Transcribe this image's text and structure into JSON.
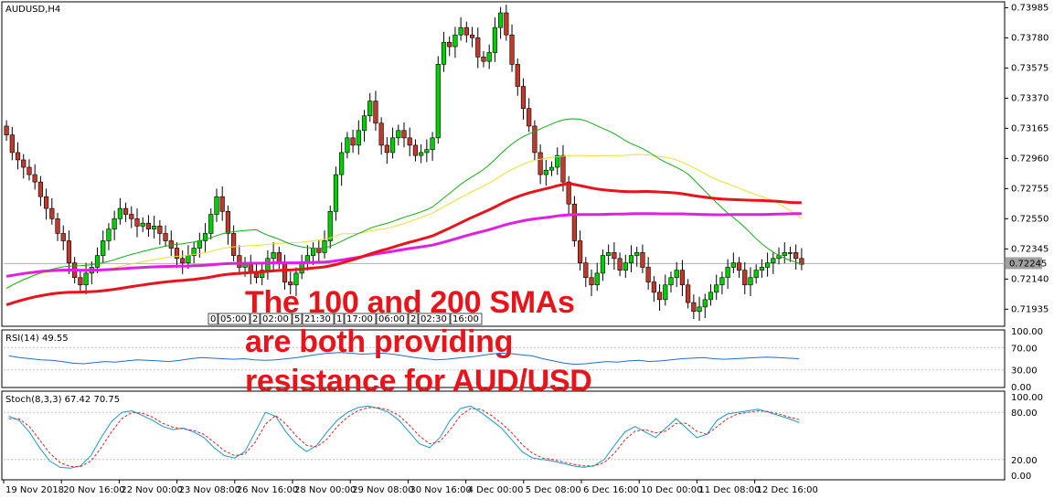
{
  "chart_data": [
    {
      "type": "candlestick",
      "title": "AUDUSD,H4",
      "price_ticks": [
        "0.73985",
        "0.73780",
        "0.73575",
        "0.73370",
        "0.73165",
        "0.72960",
        "0.72755",
        "0.72550",
        "0.72345",
        "0.72140",
        "0.71935"
      ],
      "current_price": "0.72245",
      "ylim": [
        0.7185,
        0.74
      ],
      "overlays": [
        "MA 100 (red)",
        "MA 200 (magenta)",
        "MA (green)",
        "MA (yellow)"
      ],
      "x_ticks": [
        "19 Nov 2018",
        "20 Nov 16:00",
        "22 Nov 00:00",
        "23 Nov 08:00",
        "26 Nov 16:00",
        "28 Nov 00:00",
        "29 Nov 08:00",
        "30 Nov 16:00",
        "4 Dec 00:00",
        "5 Dec 08:00",
        "6 Dec 16:00",
        "10 Dec 00:00",
        "11 Dec 08:00",
        "12 Dec 16:00"
      ],
      "closes": [
        0.7312,
        0.73,
        0.7295,
        0.729,
        0.7285,
        0.728,
        0.727,
        0.7262,
        0.7255,
        0.7245,
        0.724,
        0.7225,
        0.7215,
        0.721,
        0.7218,
        0.7222,
        0.723,
        0.724,
        0.7248,
        0.7255,
        0.7262,
        0.7258,
        0.7255,
        0.725,
        0.7252,
        0.7248,
        0.725,
        0.7245,
        0.724,
        0.7235,
        0.7228,
        0.7225,
        0.723,
        0.7235,
        0.724,
        0.7245,
        0.7258,
        0.727,
        0.726,
        0.7245,
        0.723,
        0.7222,
        0.7225,
        0.7218,
        0.7215,
        0.722,
        0.7228,
        0.7232,
        0.7225,
        0.7212,
        0.721,
        0.7218,
        0.7225,
        0.723,
        0.7235,
        0.7232,
        0.724,
        0.726,
        0.7285,
        0.73,
        0.731,
        0.7305,
        0.7315,
        0.7325,
        0.7335,
        0.732,
        0.7305,
        0.73,
        0.731,
        0.7315,
        0.731,
        0.7305,
        0.7298,
        0.73,
        0.7302,
        0.731,
        0.736,
        0.7375,
        0.7372,
        0.738,
        0.7385,
        0.738,
        0.7378,
        0.7365,
        0.7362,
        0.7368,
        0.7385,
        0.7395,
        0.738,
        0.736,
        0.7345,
        0.733,
        0.7318,
        0.73,
        0.7285,
        0.7288,
        0.729,
        0.7298,
        0.728,
        0.7265,
        0.724,
        0.7225,
        0.7215,
        0.721,
        0.7218,
        0.723,
        0.7232,
        0.7228,
        0.722,
        0.7225,
        0.723,
        0.7232,
        0.7222,
        0.7212,
        0.7205,
        0.72,
        0.721,
        0.7215,
        0.722,
        0.721,
        0.7198,
        0.7192,
        0.7195,
        0.72,
        0.7205,
        0.721,
        0.7215,
        0.7222,
        0.7225,
        0.722,
        0.721,
        0.7215,
        0.722,
        0.7222,
        0.7225,
        0.7228,
        0.723,
        0.7232,
        0.7232,
        0.7228,
        0.7224
      ]
    },
    {
      "type": "line",
      "title": "RSI(14) 49.55",
      "y_ticks": [
        "100.00",
        "70.00",
        "30.00",
        "0.00"
      ],
      "ylim": [
        0,
        100
      ],
      "series": [
        {
          "values": [
            55,
            52,
            50,
            48,
            47,
            45,
            42,
            41,
            43,
            45,
            44,
            46,
            48,
            47,
            46,
            45,
            47,
            50,
            52,
            51,
            50,
            49,
            50,
            48,
            47,
            48,
            50,
            52,
            55,
            58,
            60,
            61,
            60,
            58,
            59,
            60,
            58,
            55,
            52,
            50,
            48,
            49,
            51,
            53,
            55,
            58,
            60,
            59,
            57,
            55,
            50,
            46,
            42,
            40,
            41,
            43,
            45,
            44,
            46,
            47,
            45,
            46,
            48,
            50,
            51,
            52,
            50,
            49,
            50,
            51,
            52,
            53,
            52,
            51,
            50
          ]
        }
      ]
    },
    {
      "type": "line",
      "title": "Stoch(8,3,3) 67.42 70.75",
      "y_ticks": [
        "100.00",
        "80.00",
        "20.00",
        "0.00"
      ],
      "ylim": [
        0,
        100
      ],
      "series": [
        {
          "values": [
            75,
            70,
            55,
            35,
            18,
            10,
            9,
            12,
            25,
            48,
            68,
            80,
            82,
            76,
            70,
            62,
            58,
            60,
            55,
            48,
            35,
            25,
            22,
            30,
            55,
            80,
            75,
            55,
            40,
            30,
            38,
            55,
            70,
            80,
            86,
            88,
            85,
            80,
            70,
            55,
            40,
            35,
            48,
            70,
            85,
            88,
            80,
            70,
            60,
            45,
            30,
            22,
            20,
            18,
            15,
            12,
            10,
            12,
            20,
            38,
            55,
            62,
            55,
            48,
            60,
            72,
            60,
            48,
            52,
            70,
            78,
            80,
            82,
            84,
            80,
            76,
            72,
            67
          ]
        },
        {
          "values": [
            72,
            72,
            62,
            45,
            28,
            16,
            11,
            11,
            18,
            35,
            55,
            72,
            80,
            79,
            74,
            66,
            61,
            59,
            57,
            52,
            42,
            31,
            25,
            27,
            42,
            65,
            76,
            65,
            50,
            38,
            36,
            46,
            62,
            74,
            82,
            86,
            86,
            83,
            76,
            64,
            50,
            40,
            43,
            58,
            76,
            85,
            84,
            76,
            66,
            54,
            39,
            28,
            22,
            20,
            17,
            14,
            12,
            12,
            16,
            28,
            45,
            56,
            58,
            54,
            56,
            66,
            66,
            56,
            52,
            62,
            72,
            78,
            80,
            82,
            81,
            78,
            74,
            70.75
          ]
        }
      ]
    }
  ],
  "annotation": {
    "line1": "The 100 and 200 SMAs",
    "line2": "are both providing",
    "line3": "resistance for AUD/USD"
  },
  "session_markers": [
    "0",
    "05:00",
    "2",
    "02:00",
    "5",
    "21:30",
    "1",
    "17:00",
    "06:00",
    "2",
    "02:30",
    "16:00"
  ],
  "colors": {
    "bull": "#00d000",
    "bear": "#c0392b",
    "sma100": "#e8141c",
    "sma200": "#e020e0",
    "green_ma": "#10b010",
    "yellow_ma": "#e8e030",
    "rsi": "#1e6fd0",
    "stoch_main": "#1a9ad0",
    "stoch_signal": "#e02020"
  }
}
